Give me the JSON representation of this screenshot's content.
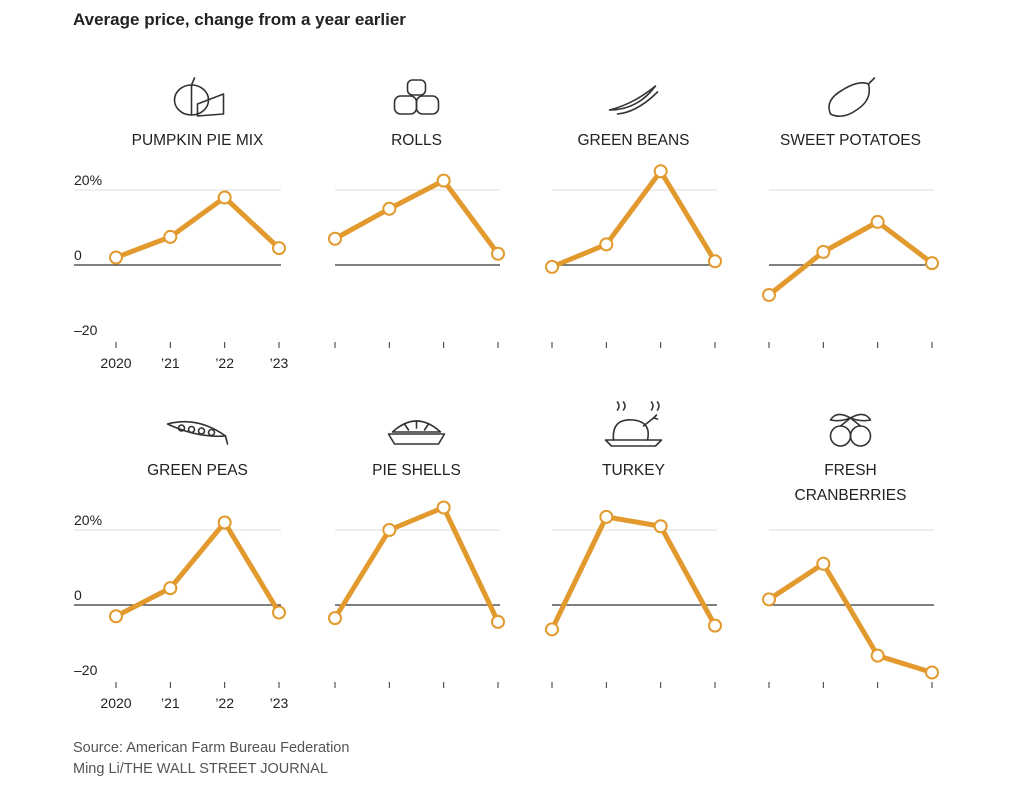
{
  "title": "Average price, change from a year earlier",
  "source": "Source: American Farm Bureau Federation",
  "credit": "Ming Li/THE WALL STREET JOURNAL",
  "colors": {
    "line": "#E29A2E",
    "grid": "#dddddd",
    "zero": "#333333",
    "text": "#222222"
  },
  "chart_data": [
    {
      "type": "line",
      "title": "PUMPKIN PIE MIX",
      "icon": "pumpkin-pie-icon",
      "x": [
        "2020",
        "’21",
        "’22",
        "’23"
      ],
      "values": [
        2,
        7.5,
        18,
        4.5
      ],
      "yticks": [
        "20%",
        "0",
        "–20"
      ],
      "ylim": [
        -20,
        20
      ]
    },
    {
      "type": "line",
      "title": "ROLLS",
      "icon": "rolls-icon",
      "x": [
        "2020",
        "’21",
        "’22",
        "’23"
      ],
      "values": [
        7,
        15,
        22.5,
        3
      ],
      "ylim": [
        -20,
        20
      ]
    },
    {
      "type": "line",
      "title": "GREEN BEANS",
      "icon": "green-beans-icon",
      "x": [
        "2020",
        "’21",
        "’22",
        "’23"
      ],
      "values": [
        -0.5,
        5.5,
        25,
        1
      ],
      "ylim": [
        -20,
        20
      ]
    },
    {
      "type": "line",
      "title": "SWEET POTATOES",
      "icon": "sweet-potato-icon",
      "x": [
        "2020",
        "’21",
        "’22",
        "’23"
      ],
      "values": [
        -8,
        3.5,
        11.5,
        0.5
      ],
      "ylim": [
        -20,
        20
      ]
    },
    {
      "type": "line",
      "title": "GREEN PEAS",
      "icon": "green-peas-icon",
      "x": [
        "2020",
        "’21",
        "’22",
        "’23"
      ],
      "values": [
        -3,
        4.5,
        22,
        -2
      ],
      "yticks": [
        "20%",
        "0",
        "–20"
      ],
      "ylim": [
        -20,
        20
      ]
    },
    {
      "type": "line",
      "title": "PIE SHELLS",
      "icon": "pie-shells-icon",
      "x": [
        "2020",
        "’21",
        "’22",
        "’23"
      ],
      "values": [
        -3.5,
        20,
        26,
        -4.5
      ],
      "ylim": [
        -20,
        20
      ]
    },
    {
      "type": "line",
      "title": "TURKEY",
      "icon": "turkey-icon",
      "x": [
        "2020",
        "’21",
        "’22",
        "’23"
      ],
      "values": [
        -6.5,
        23.5,
        21,
        -5.5
      ],
      "ylim": [
        -20,
        20
      ]
    },
    {
      "type": "line",
      "title": "FRESH CRANBERRIES",
      "icon": "cranberries-icon",
      "x": [
        "2020",
        "’21",
        "’22",
        "’23"
      ],
      "values": [
        1.5,
        11,
        -13.5,
        -18
      ],
      "ylim": [
        -20,
        20
      ]
    }
  ]
}
